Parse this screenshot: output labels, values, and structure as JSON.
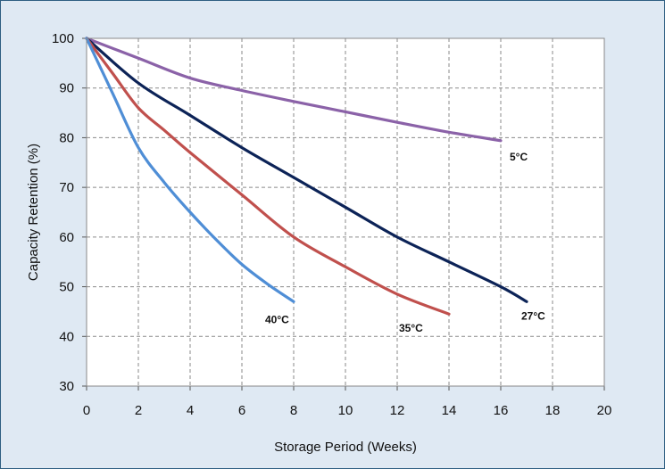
{
  "chart_data": {
    "type": "line",
    "xlabel": "Storage Period (Weeks)",
    "ylabel": "Capacity Retention (%)",
    "xlim": [
      0,
      20
    ],
    "ylim": [
      30,
      100
    ],
    "x_ticks": [
      0,
      2,
      4,
      6,
      8,
      10,
      12,
      14,
      16,
      18,
      20
    ],
    "y_ticks": [
      30,
      40,
      50,
      60,
      70,
      80,
      90,
      100
    ],
    "grid": true,
    "grid_style": "dashed",
    "background_color": "#dfe9f3",
    "plot_background": "#ffffff",
    "series": [
      {
        "name": "5°C",
        "color": "#8b62a8",
        "x": [
          0,
          2,
          4,
          6,
          8,
          10,
          12,
          14,
          16
        ],
        "y": [
          100,
          96,
          92,
          89.5,
          87.3,
          85.2,
          83.1,
          81.1,
          79.4
        ]
      },
      {
        "name": "27°C",
        "color": "#0c2357",
        "x": [
          0,
          2,
          4,
          6,
          8,
          10,
          12,
          14,
          16,
          17
        ],
        "y": [
          100,
          91,
          84.5,
          78,
          72,
          66,
          60,
          55,
          50,
          47
        ]
      },
      {
        "name": "35°C",
        "color": "#c0504d",
        "x": [
          0,
          1,
          2,
          3,
          4,
          6,
          8,
          10,
          12,
          14
        ],
        "y": [
          100,
          93,
          86,
          81.5,
          77,
          68.5,
          60,
          54,
          48.5,
          44.5
        ]
      },
      {
        "name": "40°C",
        "color": "#4f8ed6",
        "x": [
          0,
          1,
          2,
          3,
          4,
          5,
          6,
          7,
          8
        ],
        "y": [
          100,
          89,
          78,
          71,
          65,
          59.5,
          54.5,
          50.5,
          47
        ]
      }
    ]
  }
}
